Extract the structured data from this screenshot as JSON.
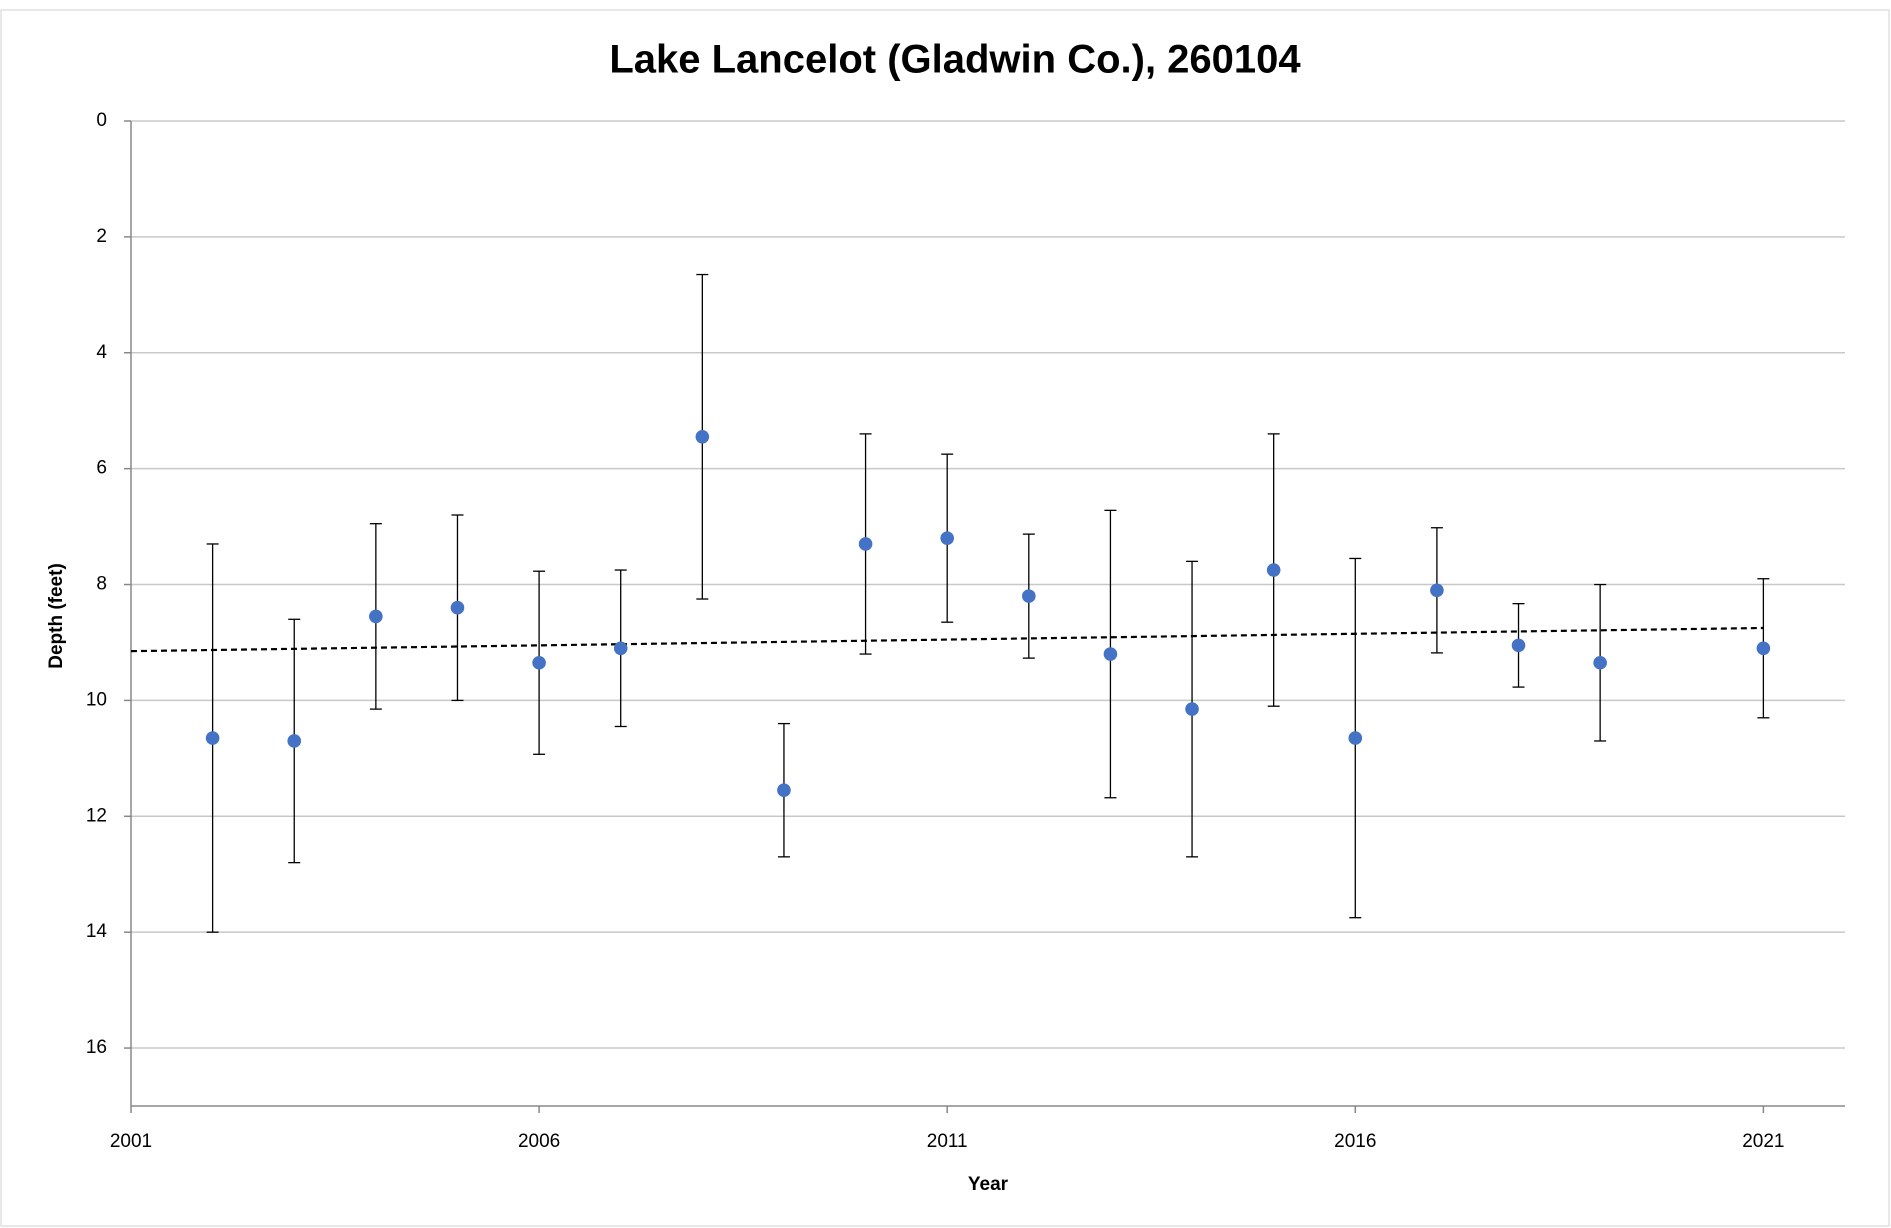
{
  "chart_data": {
    "type": "scatter",
    "title": "Lake Lancelot (Gladwin Co.), 260104",
    "x_label": "Year",
    "y_label": "Depth (feet)",
    "xlim": [
      2001,
      2022
    ],
    "xticks": [
      2001,
      2006,
      2011,
      2016,
      2021
    ],
    "ylim": [
      0,
      17
    ],
    "yticks": [
      0,
      2,
      4,
      6,
      8,
      10,
      12,
      14,
      16
    ],
    "y_inverted": true,
    "grid": true,
    "series": [
      {
        "color": "#4472c4",
        "x": [
          2002,
          2003,
          2004,
          2005,
          2006,
          2007,
          2008,
          2009,
          2010,
          2011,
          2012,
          2013,
          2014,
          2015,
          2016,
          2017,
          2018,
          2019,
          2021
        ],
        "values": [
          10.65,
          10.7,
          8.55,
          8.4,
          9.35,
          9.1,
          5.45,
          11.55,
          7.3,
          7.2,
          8.2,
          9.2,
          10.15,
          7.75,
          10.65,
          8.1,
          9.05,
          9.35,
          9.1
        ],
        "errors": [
          3.35,
          2.1,
          1.6,
          1.6,
          1.58,
          1.35,
          2.8,
          1.15,
          1.9,
          1.45,
          1.07,
          2.48,
          2.55,
          2.35,
          3.1,
          1.08,
          0.72,
          1.35,
          1.2
        ]
      }
    ],
    "trendline": {
      "x": [
        2001,
        2021
      ],
      "values": [
        9.15,
        8.75
      ],
      "color": "#000000",
      "dashed": true
    }
  }
}
